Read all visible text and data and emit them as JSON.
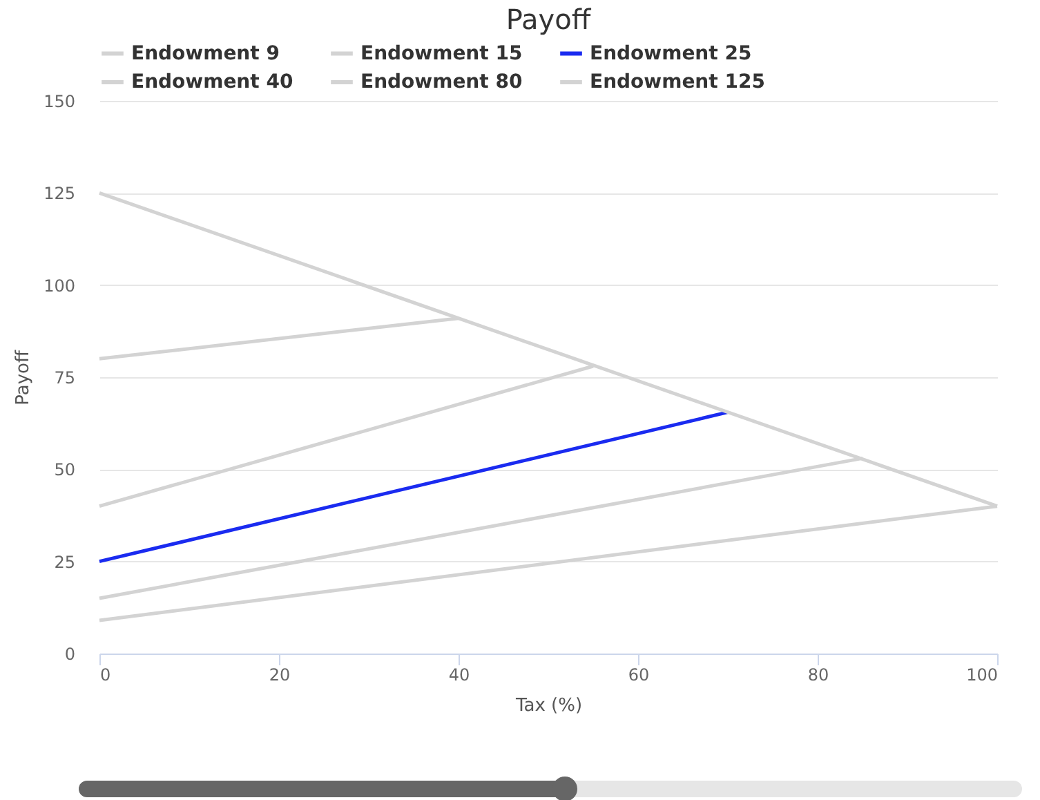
{
  "chart_data": {
    "type": "line",
    "title": "Payoff",
    "xlabel": "Tax (%)",
    "ylabel": "Payoff",
    "series": [
      {
        "name": "Endowment 9",
        "color": "#d3d3d3",
        "x": [
          0,
          100
        ],
        "values": [
          9,
          40
        ]
      },
      {
        "name": "Endowment 15",
        "color": "#d3d3d3",
        "x": [
          0,
          85
        ],
        "values": [
          15,
          53
        ]
      },
      {
        "name": "Endowment 25",
        "color": "#1a2bf0",
        "x": [
          0,
          70
        ],
        "values": [
          25,
          65.5
        ]
      },
      {
        "name": "Endowment 40",
        "color": "#d3d3d3",
        "x": [
          0,
          55
        ],
        "values": [
          40,
          78
        ]
      },
      {
        "name": "Endowment 80",
        "color": "#d3d3d3",
        "x": [
          0,
          40
        ],
        "values": [
          80,
          91
        ]
      },
      {
        "name": "Endowment 125",
        "color": "#d3d3d3",
        "x": [
          0,
          100
        ],
        "values": [
          125,
          40
        ]
      }
    ],
    "xlim": [
      0,
      100
    ],
    "xticks": [
      0,
      20,
      40,
      60,
      80,
      100
    ],
    "ylim": [
      0,
      150
    ],
    "yticks": [
      0,
      25,
      50,
      75,
      100,
      125,
      150
    ],
    "grid": "y",
    "legend": "top",
    "marker": "none",
    "line_style": "solid"
  }
}
